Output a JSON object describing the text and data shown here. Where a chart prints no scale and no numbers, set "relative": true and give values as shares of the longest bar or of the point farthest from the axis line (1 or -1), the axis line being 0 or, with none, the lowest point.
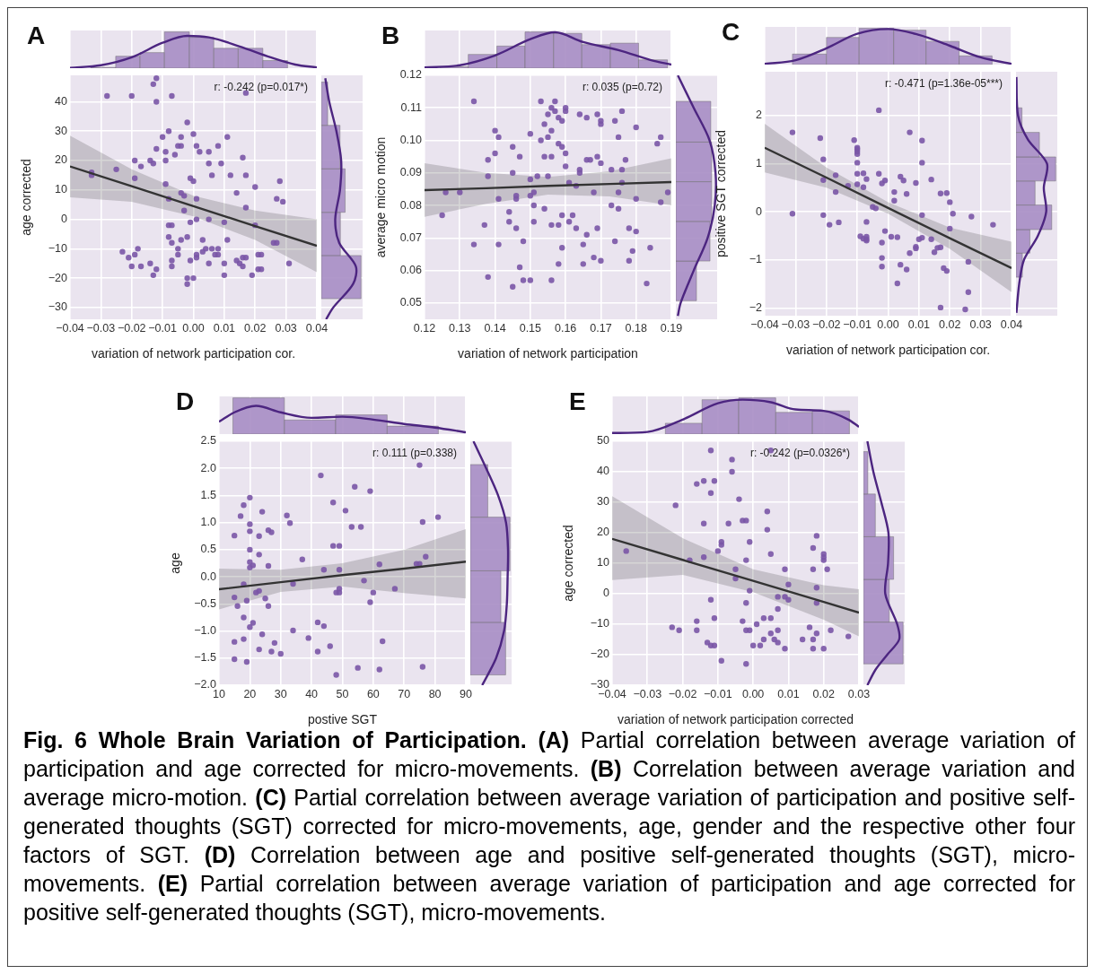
{
  "chart_data": [
    {
      "type": "scatter",
      "title": "A",
      "xlabel": "variation of network participation cor.",
      "ylabel": "age corrected",
      "annotations": [
        "r: -0.242 (p=0.017*)"
      ],
      "xlim": [
        -0.04,
        0.04
      ],
      "ylim": [
        -34,
        49
      ],
      "xticks": [
        {
          "value": -0.04,
          "label": "−0.04"
        },
        {
          "value": -0.03,
          "label": "−0.03"
        },
        {
          "value": -0.02,
          "label": "−0.02"
        },
        {
          "value": -0.01,
          "label": "−0.01"
        },
        {
          "value": 0,
          "label": "0.00"
        },
        0.01,
        0.02,
        0.03,
        0.04
      ],
      "yticks": [
        {
          "value": -30,
          "label": "−30"
        },
        {
          "value": -20,
          "label": "−20"
        },
        {
          "value": -10,
          "label": "−10"
        },
        0,
        10,
        20,
        30,
        40
      ],
      "grid": true,
      "series": [
        {
          "type": "scatter",
          "marker": "circle",
          "color": "#7a55a6",
          "x": [
            -0.012,
            -0.013,
            -0.028,
            -0.02,
            -0.012,
            -0.007,
            0.017,
            -0.002,
            -0.008,
            0.0,
            -0.01,
            0.011,
            -0.004,
            -0.005,
            -0.004,
            0.001,
            -0.012,
            -0.009,
            0.005,
            0.002,
            0.008,
            -0.006,
            0.016,
            -0.019,
            -0.014,
            -0.013,
            -0.017,
            -0.009,
            0.005,
            0.009,
            -0.025,
            -0.033,
            -0.033,
            -0.019,
            -0.001,
            0.0,
            0.006,
            0.012,
            0.017,
            0.028,
            0.02,
            -0.009,
            -0.004,
            -0.003,
            0.014,
            -0.008,
            0.001,
            0.027,
            0.029,
            -0.003,
            0.017,
            0.001,
            -0.001,
            0.005,
            0.01,
            -0.008,
            -0.007,
            0.02,
            -0.008,
            -0.007,
            -0.002,
            -0.004,
            0.011,
            0.026,
            0.027,
            0.003,
            -0.023,
            -0.019,
            -0.018,
            -0.021,
            -0.02,
            -0.017,
            -0.014,
            -0.013,
            -0.012,
            -0.007,
            -0.007,
            -0.005,
            -0.005,
            -0.001,
            0.001,
            0.001,
            0.004,
            0.003,
            0.006,
            0.008,
            0.007,
            0.008,
            0.005,
            0.01,
            0.01,
            0.014,
            0.015,
            0.016,
            0.017,
            0.016,
            0.019,
            0.021,
            0.022,
            0.021,
            0.022,
            0.031,
            -0.002,
            -0.002,
            0.0
          ],
          "values": [
            48,
            46,
            42,
            42,
            40,
            42,
            43,
            33,
            30,
            29,
            28,
            28,
            28,
            25,
            25,
            25,
            24,
            23,
            23,
            23,
            25,
            22,
            21,
            20,
            20,
            19,
            18,
            20,
            19,
            19,
            17,
            16,
            15,
            14,
            14,
            13,
            15,
            15,
            15,
            13,
            11,
            12,
            9,
            8,
            9,
            7,
            7,
            7,
            6,
            3,
            4,
            0,
            -1,
            0,
            -1,
            -2,
            -2,
            -2,
            -6,
            -8,
            -6,
            -7,
            -7,
            -8,
            -8,
            -7,
            -11,
            -12,
            -10,
            -13,
            -16,
            -16,
            -15,
            -19,
            -17,
            -14,
            -16,
            -10,
            -12,
            -14,
            -12,
            -13,
            -10,
            -11,
            -10,
            -10,
            -12,
            -12,
            -15,
            -15,
            -19,
            -14,
            -15,
            -13,
            -13,
            -16,
            -19,
            -12,
            -12,
            -17,
            -17,
            -15,
            -22,
            -20,
            -20
          ]
        },
        {
          "type": "line",
          "color": "#333333",
          "x": [
            -0.04,
            -0.02,
            0,
            0.02,
            0.04
          ],
          "values": [
            18,
            11.3,
            4.5,
            -2.3,
            -9
          ],
          "lower": [
            7.5,
            6,
            1,
            -7,
            -18
          ],
          "upper": [
            28.5,
            17,
            8,
            3,
            0
          ]
        }
      ]
    },
    {
      "type": "histogram",
      "relative": true,
      "xlim": [
        -0.04,
        0.04
      ],
      "xticks": [
        -0.04,
        -0.03,
        -0.02,
        -0.01,
        0,
        0.01,
        0.02,
        0.03,
        0.04
      ],
      "tick_labels": false,
      "grid": "x",
      "series": [
        {
          "type": "histogram",
          "color": "#a78dc4",
          "bins": [
            -0.0333,
            -0.0252,
            -0.0173,
            -0.0094,
            -0.0013,
            0.0066,
            0.0145,
            0.0225,
            0.0305
          ],
          "values": [
            0.02,
            0.33,
            0.43,
            1,
            0.85,
            0.55,
            0.55,
            0.21
          ]
        },
        {
          "type": "line",
          "color": "#4c2580",
          "x": [
            -0.04,
            -0.03,
            -0.02,
            -0.01,
            -0.002,
            0.005,
            0.015,
            0.025,
            0.033,
            0.04
          ],
          "values": [
            0.01,
            0.08,
            0.3,
            0.7,
            0.89,
            0.85,
            0.6,
            0.3,
            0.1,
            0.02
          ]
        }
      ]
    },
    {
      "type": "histogram",
      "orientation": "horizontal",
      "relative": true,
      "ylim": [
        -34,
        49
      ],
      "yticks": [
        -30,
        -20,
        -10,
        0,
        10,
        20,
        30,
        40
      ],
      "tick_labels": false,
      "grid": "y",
      "series": [
        {
          "type": "histogram",
          "color": "#a78dc4",
          "bins": [
            -27,
            -12.3,
            2.4,
            17.2,
            32,
            46.7
          ],
          "values": [
            1,
            0.48,
            0.6,
            0.47,
            0.16
          ]
        },
        {
          "type": "line",
          "color": "#4c2580",
          "x": [
            48,
            40,
            30,
            20,
            10,
            0,
            -8,
            -16,
            -22,
            -30,
            -34
          ],
          "values": [
            0.1,
            0.2,
            0.38,
            0.5,
            0.47,
            0.35,
            0.45,
            0.87,
            0.8,
            0.3,
            0.12
          ]
        }
      ]
    },
    {
      "type": "scatter",
      "title": "B",
      "xlabel": "variation of network participation",
      "ylabel": "average micro motion",
      "annotations": [
        "r: 0.035 (p=0.72)"
      ],
      "xlim": [
        0.12,
        0.19
      ],
      "ylim": [
        0.045,
        0.12
      ],
      "xticks": [
        0.12,
        0.13,
        0.14,
        0.15,
        0.16,
        0.17,
        0.18,
        0.19
      ],
      "yticks": [
        0.05,
        0.06,
        0.07,
        0.08,
        0.09,
        {
          "value": 0.1,
          "label": "0.10"
        },
        0.11,
        0.12
      ],
      "grid": true,
      "series": [
        {
          "type": "scatter",
          "marker": "circle",
          "color": "#7a55a6",
          "x": [
            0.134,
            0.153,
            0.157,
            0.156,
            0.157,
            0.16,
            0.16,
            0.158,
            0.155,
            0.159,
            0.154,
            0.156,
            0.164,
            0.166,
            0.169,
            0.17,
            0.17,
            0.174,
            0.176,
            0.18,
            0.14,
            0.141,
            0.15,
            0.155,
            0.153,
            0.158,
            0.159,
            0.16,
            0.145,
            0.147,
            0.14,
            0.138,
            0.154,
            0.156,
            0.166,
            0.167,
            0.169,
            0.17,
            0.177,
            0.175,
            0.186,
            0.187,
            0.16,
            0.164,
            0.164,
            0.173,
            0.176,
            0.138,
            0.145,
            0.15,
            0.152,
            0.155,
            0.161,
            0.163,
            0.176,
            0.126,
            0.13,
            0.141,
            0.146,
            0.146,
            0.151,
            0.15,
            0.168,
            0.175,
            0.18,
            0.189,
            0.151,
            0.154,
            0.173,
            0.175,
            0.187,
            0.125,
            0.144,
            0.159,
            0.162,
            0.161,
            0.144,
            0.151,
            0.137,
            0.146,
            0.156,
            0.158,
            0.163,
            0.169,
            0.178,
            0.18,
            0.166,
            0.134,
            0.141,
            0.148,
            0.159,
            0.165,
            0.174,
            0.179,
            0.184,
            0.168,
            0.17,
            0.158,
            0.165,
            0.178,
            0.147,
            0.138,
            0.148,
            0.15,
            0.156,
            0.145,
            0.183
          ],
          "values": [
            0.112,
            0.112,
            0.112,
            0.11,
            0.109,
            0.109,
            0.11,
            0.107,
            0.108,
            0.106,
            0.105,
            0.103,
            0.108,
            0.107,
            0.108,
            0.106,
            0.105,
            0.106,
            0.109,
            0.104,
            0.103,
            0.101,
            0.102,
            0.101,
            0.1,
            0.099,
            0.098,
            0.096,
            0.098,
            0.095,
            0.096,
            0.094,
            0.095,
            0.095,
            0.094,
            0.094,
            0.095,
            0.093,
            0.094,
            0.101,
            0.099,
            0.101,
            0.092,
            0.091,
            0.09,
            0.091,
            0.091,
            0.089,
            0.09,
            0.088,
            0.089,
            0.089,
            0.087,
            0.086,
            0.087,
            0.084,
            0.084,
            0.082,
            0.083,
            0.082,
            0.084,
            0.083,
            0.084,
            0.084,
            0.082,
            0.084,
            0.08,
            0.079,
            0.08,
            0.079,
            0.081,
            0.077,
            0.078,
            0.077,
            0.077,
            0.075,
            0.075,
            0.075,
            0.074,
            0.073,
            0.074,
            0.074,
            0.073,
            0.073,
            0.073,
            0.072,
            0.071,
            0.068,
            0.068,
            0.069,
            0.067,
            0.068,
            0.069,
            0.066,
            0.067,
            0.064,
            0.063,
            0.062,
            0.062,
            0.063,
            0.061,
            0.058,
            0.057,
            0.057,
            0.057,
            0.055,
            0.056
          ]
        },
        {
          "type": "line",
          "color": "#333333",
          "x": [
            0.12,
            0.1375,
            0.155,
            0.1725,
            0.19
          ],
          "values": [
            0.0847,
            0.0853,
            0.086,
            0.0866,
            0.0872
          ],
          "lower": [
            0.0765,
            0.0805,
            0.0833,
            0.0828,
            0.08
          ],
          "upper": [
            0.093,
            0.09,
            0.0888,
            0.0905,
            0.0945
          ]
        }
      ]
    },
    {
      "type": "histogram",
      "relative": true,
      "xlim": [
        0.12,
        0.19
      ],
      "xticks": [
        0.12,
        0.13,
        0.14,
        0.15,
        0.16,
        0.17,
        0.18,
        0.19
      ],
      "tick_labels": false,
      "grid": "x",
      "series": [
        {
          "type": "histogram",
          "color": "#a78dc4",
          "bins": [
            0.1244,
            0.1324,
            0.1405,
            0.1485,
            0.1566,
            0.1646,
            0.1727,
            0.1807,
            0.1889
          ],
          "values": [
            0.04,
            0.38,
            0.61,
            1,
            0.96,
            0.65,
            0.69,
            0.23
          ]
        },
        {
          "type": "line",
          "color": "#4c2580",
          "x": [
            0.12,
            0.13,
            0.14,
            0.15,
            0.157,
            0.165,
            0.175,
            0.185,
            0.19
          ],
          "values": [
            0.02,
            0.08,
            0.35,
            0.8,
            0.99,
            0.72,
            0.5,
            0.2,
            0.1
          ]
        }
      ]
    },
    {
      "type": "histogram",
      "orientation": "horizontal",
      "relative": true,
      "ylim": [
        0.045,
        0.12
      ],
      "yticks": [
        0.05,
        0.06,
        0.07,
        0.08,
        0.09,
        0.1,
        0.11,
        0.12
      ],
      "tick_labels": false,
      "grid": "y",
      "series": [
        {
          "type": "histogram",
          "color": "#a78dc4",
          "bins": [
            0.0507,
            0.0629,
            0.0751,
            0.0873,
            0.0995,
            0.112
          ],
          "values": [
            0.52,
            0.86,
            0.9,
            0.9,
            0.88
          ]
        },
        {
          "type": "line",
          "color": "#4c2580",
          "x": [
            0.12,
            0.11,
            0.1,
            0.09,
            0.08,
            0.07,
            0.06,
            0.05,
            0.046
          ],
          "values": [
            0.05,
            0.45,
            0.85,
            1,
            0.98,
            0.8,
            0.45,
            0.12,
            0.05
          ]
        }
      ]
    },
    {
      "type": "scatter",
      "title": "C",
      "xlabel": "variation of network participation cor.",
      "ylabel": "positive SGT corrected",
      "annotations": [
        "r: -0.471 (p=1.36e-05***)"
      ],
      "xlim": [
        -0.04,
        0.04
      ],
      "ylim": [
        -2.16,
        2.91
      ],
      "xticks": [
        {
          "value": -0.04,
          "label": "−0.04"
        },
        {
          "value": -0.03,
          "label": "−0.03"
        },
        {
          "value": -0.02,
          "label": "−0.02"
        },
        {
          "value": -0.01,
          "label": "−0.01"
        },
        {
          "value": 0,
          "label": "0.00"
        },
        0.01,
        0.02,
        0.03,
        0.04
      ],
      "yticks": [
        {
          "value": -2,
          "label": "−2"
        },
        {
          "value": -1,
          "label": "−1"
        },
        0,
        1,
        2
      ],
      "grid": true,
      "series": [
        {
          "type": "scatter",
          "marker": "circle",
          "color": "#7a55a6",
          "x": [
            -0.003,
            -0.031,
            0.007,
            -0.022,
            -0.011,
            0.011,
            -0.01,
            -0.01,
            -0.01,
            -0.01,
            -0.01,
            0.011,
            -0.021,
            -0.01,
            -0.008,
            -0.017,
            -0.003,
            0.004,
            0.005,
            -0.021,
            -0.007,
            0.014,
            0.009,
            -0.01,
            -0.001,
            -0.002,
            -0.013,
            -0.008,
            -0.017,
            0.002,
            0.006,
            0.017,
            0.019,
            0.002,
            0.02,
            -0.005,
            -0.004,
            -0.031,
            -0.021,
            0.011,
            0.021,
            0.027,
            0.034,
            -0.019,
            -0.016,
            -0.007,
            0.02,
            -0.001,
            -0.009,
            -0.008,
            -0.007,
            -0.007,
            -0.007,
            0.001,
            0.003,
            0.011,
            0.01,
            0.014,
            -0.002,
            0.009,
            0.009,
            0.017,
            0.016,
            0.015,
            0.007,
            -0.002,
            0.026,
            0.004,
            -0.002,
            0.006,
            0.018,
            0.019,
            0.003,
            0.026,
            0.017,
            0.025
          ],
          "values": [
            2.11,
            1.65,
            1.65,
            1.53,
            1.49,
            1.48,
            1.33,
            1.3,
            1.25,
            1.2,
            1.02,
            1.02,
            1.09,
            0.79,
            0.8,
            0.76,
            0.79,
            0.73,
            0.65,
            0.66,
            0.68,
            0.67,
            0.6,
            0.57,
            0.65,
            0.59,
            0.54,
            0.51,
            0.41,
            0.41,
            0.37,
            0.38,
            0.39,
            0.23,
            0.2,
            0.1,
            0.07,
            -0.04,
            -0.07,
            -0.07,
            -0.04,
            -0.1,
            -0.27,
            -0.27,
            -0.22,
            -0.21,
            -0.35,
            -0.4,
            -0.51,
            -0.56,
            -0.57,
            -0.52,
            -0.6,
            -0.52,
            -0.53,
            -0.54,
            -0.57,
            -0.57,
            -0.64,
            -0.73,
            -0.76,
            -0.74,
            -0.75,
            -0.84,
            -0.86,
            -0.96,
            -1.04,
            -1.1,
            -1.14,
            -1.2,
            -1.17,
            -1.23,
            -1.49,
            -1.67,
            -1.99,
            -2.03
          ]
        },
        {
          "type": "line",
          "color": "#333333",
          "x": [
            -0.04,
            -0.02,
            0,
            0.02,
            0.04
          ],
          "values": [
            1.33,
            0.71,
            0.08,
            -0.55,
            -1.17
          ],
          "lower": [
            0.82,
            0.5,
            -0.04,
            -0.77,
            -1.67
          ],
          "upper": [
            1.83,
            0.92,
            0.2,
            -0.33,
            -0.62
          ]
        }
      ]
    },
    {
      "type": "histogram",
      "relative": true,
      "xlim": [
        -0.04,
        0.04
      ],
      "xticks": [
        -0.04,
        -0.03,
        -0.02,
        -0.01,
        0,
        0.01,
        0.02,
        0.03,
        0.04
      ],
      "tick_labels": false,
      "grid": "x",
      "series": [
        {
          "type": "histogram",
          "color": "#a78dc4",
          "bins": [
            -0.031,
            -0.02,
            -0.0094,
            0.0018,
            0.0123,
            0.023,
            0.0337
          ],
          "values": [
            0.29,
            0.75,
            1,
            0.95,
            0.64,
            0.24
          ]
        },
        {
          "type": "line",
          "color": "#4c2580",
          "x": [
            -0.04,
            -0.03,
            -0.02,
            -0.01,
            0,
            0.01,
            0.02,
            0.03,
            0.04
          ],
          "values": [
            0.02,
            0.12,
            0.45,
            0.85,
            0.98,
            0.82,
            0.52,
            0.2,
            0.02
          ]
        }
      ]
    },
    {
      "type": "histogram",
      "orientation": "horizontal",
      "relative": true,
      "ylim": [
        -2.16,
        2.91
      ],
      "yticks": [
        -2,
        -1,
        0,
        1,
        2
      ],
      "tick_labels": false,
      "grid": "y",
      "series": [
        {
          "type": "histogram",
          "color": "#a78dc4",
          "bins": [
            -1.36,
            -0.86,
            -0.37,
            0.14,
            0.64,
            1.14,
            1.65,
            2.16
          ],
          "values": [
            0.16,
            0.35,
            0.9,
            0.48,
            1,
            0.59,
            0.15
          ]
        },
        {
          "type": "line",
          "color": "#4c2580",
          "x": [
            2.8,
            2.0,
            1.5,
            1.0,
            0.5,
            0,
            -0.5,
            -1.0,
            -1.5,
            -2.1
          ],
          "values": [
            0.01,
            0.05,
            0.3,
            0.78,
            0.7,
            0.76,
            0.55,
            0.2,
            0.08,
            0.01
          ]
        }
      ]
    },
    {
      "type": "scatter",
      "title": "D",
      "xlabel": "postive SGT",
      "ylabel": "age",
      "annotations": [
        "r: 0.111 (p=0.338)"
      ],
      "xlim": [
        10,
        90
      ],
      "ylim": [
        -2,
        2.5
      ],
      "xticks": [
        10,
        20,
        30,
        40,
        50,
        60,
        70,
        80,
        90
      ],
      "yticks": [
        {
          "value": -2,
          "label": "−2.0"
        },
        {
          "value": -1.5,
          "label": "−1.5"
        },
        {
          "value": -1,
          "label": "−1.0"
        },
        {
          "value": -0.5,
          "label": "−0.5"
        },
        {
          "value": 0,
          "label": "0.0"
        },
        0.5,
        {
          "value": 1,
          "label": "1.0"
        },
        1.5,
        {
          "value": 2,
          "label": "2.0"
        },
        2.5
      ],
      "grid": true,
      "series": [
        {
          "type": "scatter",
          "marker": "circle",
          "color": "#7a55a6",
          "x": [
            75,
            43,
            54,
            59,
            20,
            47,
            18,
            51,
            17,
            24,
            32,
            33,
            20,
            53,
            56,
            76,
            81,
            15,
            20,
            23,
            26,
            27,
            20,
            23,
            37,
            47,
            49,
            20,
            20,
            21,
            26,
            44,
            49,
            62,
            74,
            75,
            77,
            34,
            18,
            22,
            23,
            25,
            26,
            49,
            48,
            49,
            57,
            60,
            67,
            59,
            15,
            16,
            19,
            18,
            21,
            20,
            24,
            34,
            42,
            44,
            39,
            18,
            28,
            23,
            27,
            30,
            42,
            46,
            63,
            15,
            15,
            19,
            48,
            55,
            62,
            76
          ],
          "values": [
            2.06,
            1.87,
            1.66,
            1.58,
            1.46,
            1.37,
            1.32,
            1.22,
            1.12,
            1.2,
            1.13,
            0.99,
            0.97,
            0.92,
            0.92,
            1.01,
            1.1,
            0.76,
            0.84,
            0.75,
            0.86,
            0.82,
            0.5,
            0.41,
            0.32,
            0.57,
            0.57,
            0.27,
            0.17,
            0.21,
            0.2,
            0.13,
            0.13,
            0.23,
            0.24,
            0.24,
            0.37,
            -0.13,
            -0.14,
            -0.29,
            -0.26,
            -0.4,
            -0.54,
            -0.22,
            -0.29,
            -0.29,
            -0.07,
            -0.29,
            -0.22,
            -0.47,
            -0.38,
            -0.54,
            -0.44,
            -0.75,
            -0.85,
            -0.93,
            -1.06,
            -0.99,
            -0.84,
            -0.91,
            -1.13,
            -1.15,
            -1.22,
            -1.34,
            -1.38,
            -1.42,
            -1.38,
            -1.28,
            -1.19,
            -1.2,
            -1.52,
            -1.57,
            -1.81,
            -1.68,
            -1.71,
            -1.66
          ]
        },
        {
          "type": "line",
          "color": "#333333",
          "x": [
            10,
            30,
            50,
            70,
            90
          ],
          "values": [
            -0.23,
            -0.1,
            0.03,
            0.15,
            0.28
          ],
          "lower": [
            -0.6,
            -0.28,
            -0.18,
            -0.3,
            -0.4
          ],
          "upper": [
            0.15,
            0.13,
            0.25,
            0.5,
            0.88
          ]
        }
      ]
    },
    {
      "type": "histogram",
      "relative": true,
      "xlim": [
        10,
        90
      ],
      "xticks": [
        10,
        20,
        30,
        40,
        50,
        60,
        70,
        80,
        90
      ],
      "tick_labels": false,
      "grid": "x",
      "series": [
        {
          "type": "histogram",
          "color": "#a78dc4",
          "bins": [
            14.5,
            31.2,
            47.8,
            64.5,
            81.1
          ],
          "values": [
            1,
            0.39,
            0.53,
            0.22
          ]
        },
        {
          "type": "line",
          "color": "#4c2580",
          "x": [
            10,
            15,
            22,
            30,
            40,
            50,
            60,
            70,
            80,
            90
          ],
          "values": [
            0.34,
            0.6,
            0.78,
            0.6,
            0.45,
            0.48,
            0.4,
            0.28,
            0.18,
            0.05
          ]
        }
      ]
    },
    {
      "type": "histogram",
      "orientation": "horizontal",
      "relative": true,
      "ylim": [
        -2,
        2.5
      ],
      "yticks": [
        -2,
        -1.5,
        -1,
        -0.5,
        0,
        0.5,
        1,
        1.5,
        2,
        2.5
      ],
      "tick_labels": false,
      "grid": "y",
      "series": [
        {
          "type": "histogram",
          "color": "#a78dc4",
          "bins": [
            -1.81,
            -0.84,
            0.11,
            1.1,
            2.07
          ],
          "values": [
            0.89,
            0.77,
            1,
            0.44
          ]
        },
        {
          "type": "line",
          "color": "#4c2580",
          "x": [
            2.5,
            2.0,
            1.5,
            1.0,
            0.5,
            0,
            -0.5,
            -1.0,
            -1.5,
            -2.0
          ],
          "values": [
            0.08,
            0.4,
            0.7,
            0.9,
            0.95,
            0.94,
            0.92,
            0.85,
            0.65,
            0.3
          ]
        }
      ]
    },
    {
      "type": "scatter",
      "title": "E",
      "xlabel": "variation of network participation corrected",
      "ylabel": "age corrected",
      "annotations": [
        "r: -0.242 (p=0.0326*)"
      ],
      "xlim": [
        -0.04,
        0.03
      ],
      "ylim": [
        -30,
        50
      ],
      "xticks": [
        {
          "value": -0.04,
          "label": "−0.04"
        },
        {
          "value": -0.03,
          "label": "−0.03"
        },
        {
          "value": -0.02,
          "label": "−0.02"
        },
        {
          "value": -0.01,
          "label": "−0.01"
        },
        {
          "value": 0,
          "label": "0.00"
        },
        0.01,
        0.02,
        0.03
      ],
      "yticks": [
        {
          "value": -30,
          "label": "−30"
        },
        {
          "value": -20,
          "label": "−20"
        },
        {
          "value": -10,
          "label": "−10"
        },
        0,
        10,
        20,
        30,
        40,
        50
      ],
      "grid": true,
      "series": [
        {
          "type": "scatter",
          "marker": "circle",
          "color": "#7a55a6",
          "x": [
            -0.012,
            -0.006,
            -0.006,
            -0.016,
            -0.014,
            -0.011,
            -0.012,
            -0.004,
            -0.022,
            0.004,
            -0.014,
            -0.007,
            -0.003,
            -0.002,
            0.004,
            -0.009,
            -0.009,
            -0.01,
            -0.001,
            -0.036,
            -0.018,
            -0.014,
            -0.002,
            0.005,
            0.018,
            0.017,
            0.02,
            0.02,
            0.02,
            0.021,
            0.017,
            0.009,
            -0.005,
            -0.005,
            -0.001,
            0.01,
            0.018,
            0.007,
            0.009,
            0.01,
            -0.012,
            -0.002,
            0.007,
            0.018,
            0.003,
            0.005,
            -0.011,
            -0.016,
            -0.003,
            0.001,
            -0.023,
            -0.021,
            -0.016,
            -0.002,
            -0.001,
            0.005,
            0.007,
            0.006,
            0.007,
            0.009,
            0.0,
            0.002,
            0.003,
            0.014,
            0.016,
            0.018,
            0.017,
            0.017,
            0.02,
            0.022,
            0.027,
            -0.013,
            -0.012,
            -0.011,
            -0.009,
            -0.002,
            0.005
          ],
          "values": [
            47,
            44,
            40,
            36,
            37,
            37,
            33,
            31,
            29,
            27,
            23,
            23,
            24,
            24,
            21,
            17,
            16,
            14,
            17,
            14,
            11,
            12,
            11,
            13,
            19,
            15,
            13,
            11,
            12,
            8,
            8,
            8,
            8,
            5,
            1,
            3,
            2,
            -1,
            -1,
            -2,
            -2,
            -3,
            -5,
            -3,
            -8,
            -8,
            -8,
            -9,
            -9,
            -10,
            -11,
            -12,
            -12,
            -12,
            -12,
            -13,
            -12,
            -15,
            -16,
            -18,
            -17,
            -17,
            -15,
            -15,
            -11,
            -13,
            -15,
            -18,
            -18,
            -12,
            -14,
            -16,
            -17,
            -17,
            -22,
            -23,
            47
          ]
        },
        {
          "type": "line",
          "color": "#333333",
          "x": [
            -0.04,
            -0.02,
            0,
            0.02,
            0.03
          ],
          "values": [
            18,
            11.1,
            4.2,
            -2.7,
            -6.2
          ],
          "lower": [
            4.5,
            6.2,
            0.5,
            -8.5,
            -14
          ],
          "upper": [
            32,
            18.2,
            8,
            2.8,
            1.5
          ]
        }
      ]
    },
    {
      "type": "histogram",
      "relative": true,
      "xlim": [
        -0.04,
        0.03
      ],
      "xticks": [
        -0.04,
        -0.03,
        -0.02,
        -0.01,
        0,
        0.01,
        0.02,
        0.03
      ],
      "tick_labels": false,
      "grid": "x",
      "series": [
        {
          "type": "histogram",
          "color": "#a78dc4",
          "bins": [
            -0.0249,
            -0.0145,
            -0.0041,
            0.0064,
            0.0168,
            0.0273
          ],
          "values": [
            0.3,
            0.95,
            1,
            0.6,
            0.64
          ]
        },
        {
          "type": "line",
          "color": "#4c2580",
          "x": [
            -0.04,
            -0.03,
            -0.02,
            -0.01,
            -0.003,
            0.005,
            0.012,
            0.02,
            0.027,
            0.03
          ],
          "values": [
            0.03,
            0.06,
            0.4,
            0.85,
            0.95,
            0.88,
            0.68,
            0.64,
            0.4,
            0.2
          ]
        }
      ]
    },
    {
      "type": "histogram",
      "orientation": "horizontal",
      "relative": true,
      "ylim": [
        -30,
        50
      ],
      "yticks": [
        -30,
        -20,
        -10,
        0,
        10,
        20,
        30,
        40,
        50
      ],
      "tick_labels": false,
      "grid": "y",
      "series": [
        {
          "type": "histogram",
          "color": "#a78dc4",
          "bins": [
            -23,
            -9.3,
            4.7,
            18.7,
            32.7,
            46.6
          ],
          "values": [
            1,
            0.65,
            0.76,
            0.3,
            0.11
          ]
        },
        {
          "type": "line",
          "color": "#4c2580",
          "x": [
            50,
            40,
            30,
            20,
            10,
            0,
            -10,
            -15,
            -20,
            -25,
            -30
          ],
          "values": [
            0.1,
            0.25,
            0.45,
            0.63,
            0.62,
            0.55,
            0.85,
            0.9,
            0.6,
            0.3,
            0.1
          ]
        }
      ]
    },
    {
      "type": "other",
      "title": "Fig. 6 Whole Brain Variation of Participation.",
      "annotations": [
        "(A) Partial correlation between average variation of participation and age corrected for micro-movements.",
        "(B) Correlation between average variation and average micro-motion.",
        "(C) Partial correlation between average variation of participation and positive self-generated thoughts (SGT) corrected for micro-movements, age, gender and the respective other four factors of SGT.",
        "(D) Correlation between age and positive self-generated thoughts (SGT), micro-movements.",
        "(E) Partial correlation between average variation of participation and age corrected for positive self-generated thoughts (SGT), micro-movements."
      ]
    }
  ]
}
